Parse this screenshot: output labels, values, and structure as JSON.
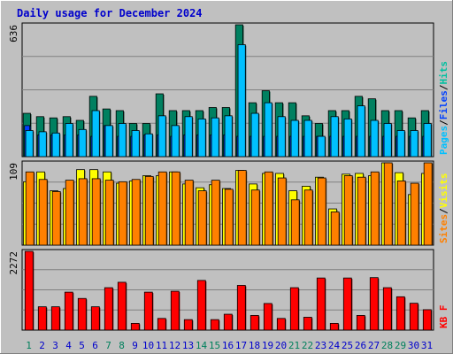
{
  "page": {
    "title": "Daily usage for December 2024"
  },
  "colors": {
    "background": "#c0c0c0",
    "title_text": "#0000cc",
    "hits": "#008060",
    "files": "#00c0ff",
    "pages": "#0040ff",
    "visits": "#ffff00",
    "sites": "#ff8000",
    "kbytes": "#ff0000",
    "weekend_day": "#00805c",
    "weekday": "#0000cc"
  },
  "chart_data": [
    {
      "type": "bar",
      "title": "Daily usage for December 2024",
      "categories": [
        "1",
        "2",
        "3",
        "4",
        "5",
        "6",
        "7",
        "8",
        "9",
        "10",
        "11",
        "12",
        "13",
        "14",
        "15",
        "16",
        "17",
        "18",
        "19",
        "20",
        "21",
        "22",
        "23",
        "24",
        "25",
        "26",
        "27",
        "28",
        "29",
        "30",
        "31"
      ],
      "weekend_categories": [
        "1",
        "7",
        "8",
        "14",
        "15",
        "21",
        "22",
        "28",
        "29"
      ],
      "ymax_label": "636",
      "ylim": [
        0,
        636
      ],
      "legend": [
        {
          "text": "Pages",
          "color": "#00c0ff"
        },
        {
          "text": "Files",
          "color": "#0040ff"
        },
        {
          "text": "Hits",
          "color": "#00c0a0"
        }
      ],
      "series": [
        {
          "name": "Hits",
          "color": "#008060",
          "values": [
            209,
            193,
            187,
            193,
            175,
            291,
            230,
            222,
            160,
            160,
            303,
            222,
            222,
            222,
            237,
            237,
            636,
            260,
            318,
            260,
            260,
            197,
            160,
            222,
            222,
            291,
            279,
            222,
            222,
            187,
            222
          ]
        },
        {
          "name": "Files",
          "color": "#00c0ff",
          "values": [
            126,
            120,
            114,
            160,
            131,
            222,
            150,
            160,
            126,
            110,
            197,
            150,
            193,
            182,
            187,
            197,
            540,
            209,
            260,
            193,
            175,
            175,
            98,
            193,
            182,
            245,
            175,
            160,
            126,
            126,
            160
          ]
        },
        {
          "name": "Pages",
          "color": "#0040ff",
          "values": [
            150,
            105,
            105,
            105,
            105,
            98,
            150,
            98,
            98,
            105,
            105,
            98,
            105,
            105,
            105,
            105,
            98,
            98,
            98,
            98,
            98,
            98,
            98,
            98,
            98,
            98,
            98,
            98,
            98,
            98,
            98
          ]
        }
      ]
    },
    {
      "type": "bar",
      "ymax_label": "109",
      "ylim": [
        0,
        109
      ],
      "legend": [
        {
          "text": "Sites",
          "color": "#ff8000"
        },
        {
          "text": "Visits",
          "color": "#ffff00"
        }
      ],
      "series": [
        {
          "name": "Visits",
          "color": "#ffff00",
          "values": [
            84,
            97,
            72,
            75,
            100,
            100,
            97,
            82,
            85,
            92,
            92,
            97,
            81,
            76,
            80,
            75,
            99,
            81,
            95,
            95,
            72,
            78,
            90,
            48,
            94,
            95,
            92,
            109,
            96,
            67,
            95
          ]
        },
        {
          "name": "Sites",
          "color": "#ff8000",
          "values": [
            97,
            87,
            71,
            86,
            88,
            88,
            86,
            84,
            87,
            91,
            97,
            97,
            86,
            72,
            86,
            74,
            99,
            73,
            97,
            89,
            60,
            73,
            89,
            44,
            92,
            90,
            97,
            109,
            85,
            82,
            109
          ]
        }
      ]
    },
    {
      "type": "bar",
      "ymax_label": "2272",
      "ylim": [
        0,
        2272
      ],
      "legend": [
        {
          "text": "KB F",
          "color": "#ff0000"
        }
      ],
      "series": [
        {
          "name": "KB F",
          "color": "#ff0000",
          "values": [
            2272,
            673,
            673,
            1095,
            913,
            673,
            1224,
            1380,
            194,
            1095,
            337,
            1121,
            303,
            1433,
            303,
            458,
            1290,
            423,
            768,
            337,
            1224,
            371,
            1503,
            194,
            1503,
            423,
            1514,
            1224,
            962,
            775,
            589
          ]
        }
      ]
    }
  ]
}
